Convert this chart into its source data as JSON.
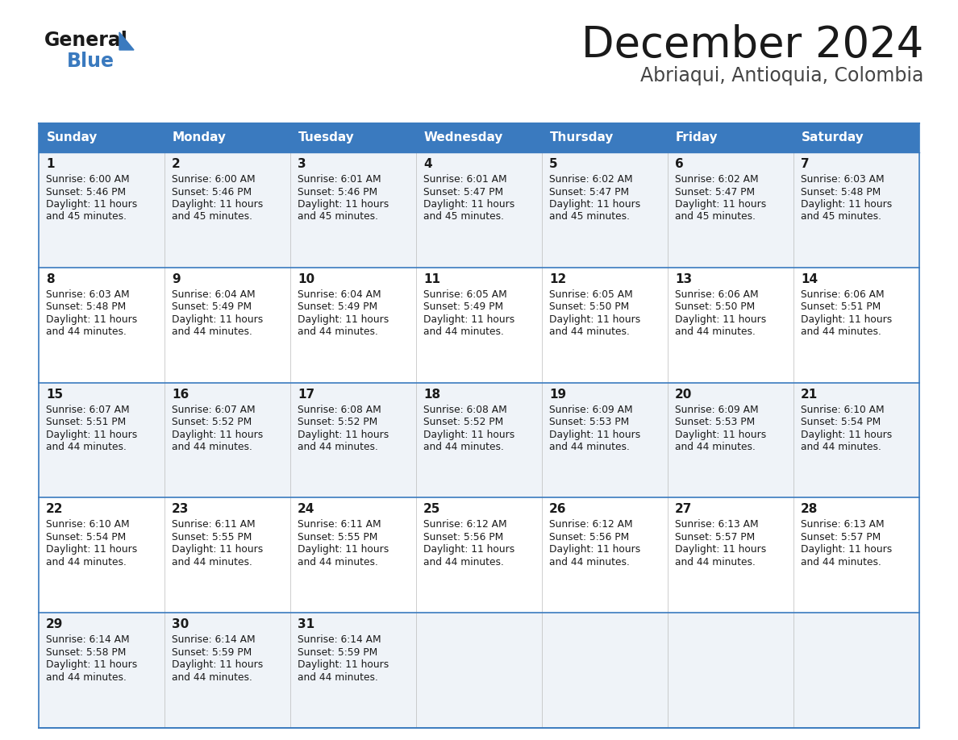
{
  "title": "December 2024",
  "subtitle": "Abriaqui, Antioquia, Colombia",
  "header_color": "#3a7abf",
  "header_text_color": "#ffffff",
  "day_names": [
    "Sunday",
    "Monday",
    "Tuesday",
    "Wednesday",
    "Thursday",
    "Friday",
    "Saturday"
  ],
  "bg_color": "#ffffff",
  "cell_bg_even": "#eff3f8",
  "cell_bg_odd": "#ffffff",
  "row_line_color": "#3a7abf",
  "text_color": "#1a1a1a",
  "logo_general_color": "#1a1a1a",
  "logo_blue_color": "#3a7abf",
  "logo_triangle_color": "#3a7abf",
  "days": [
    {
      "day": 1,
      "col": 0,
      "row": 0,
      "sunrise": "6:00 AM",
      "sunset": "5:46 PM",
      "daylight_mins": "45"
    },
    {
      "day": 2,
      "col": 1,
      "row": 0,
      "sunrise": "6:00 AM",
      "sunset": "5:46 PM",
      "daylight_mins": "45"
    },
    {
      "day": 3,
      "col": 2,
      "row": 0,
      "sunrise": "6:01 AM",
      "sunset": "5:46 PM",
      "daylight_mins": "45"
    },
    {
      "day": 4,
      "col": 3,
      "row": 0,
      "sunrise": "6:01 AM",
      "sunset": "5:47 PM",
      "daylight_mins": "45"
    },
    {
      "day": 5,
      "col": 4,
      "row": 0,
      "sunrise": "6:02 AM",
      "sunset": "5:47 PM",
      "daylight_mins": "45"
    },
    {
      "day": 6,
      "col": 5,
      "row": 0,
      "sunrise": "6:02 AM",
      "sunset": "5:47 PM",
      "daylight_mins": "45"
    },
    {
      "day": 7,
      "col": 6,
      "row": 0,
      "sunrise": "6:03 AM",
      "sunset": "5:48 PM",
      "daylight_mins": "45"
    },
    {
      "day": 8,
      "col": 0,
      "row": 1,
      "sunrise": "6:03 AM",
      "sunset": "5:48 PM",
      "daylight_mins": "44"
    },
    {
      "day": 9,
      "col": 1,
      "row": 1,
      "sunrise": "6:04 AM",
      "sunset": "5:49 PM",
      "daylight_mins": "44"
    },
    {
      "day": 10,
      "col": 2,
      "row": 1,
      "sunrise": "6:04 AM",
      "sunset": "5:49 PM",
      "daylight_mins": "44"
    },
    {
      "day": 11,
      "col": 3,
      "row": 1,
      "sunrise": "6:05 AM",
      "sunset": "5:49 PM",
      "daylight_mins": "44"
    },
    {
      "day": 12,
      "col": 4,
      "row": 1,
      "sunrise": "6:05 AM",
      "sunset": "5:50 PM",
      "daylight_mins": "44"
    },
    {
      "day": 13,
      "col": 5,
      "row": 1,
      "sunrise": "6:06 AM",
      "sunset": "5:50 PM",
      "daylight_mins": "44"
    },
    {
      "day": 14,
      "col": 6,
      "row": 1,
      "sunrise": "6:06 AM",
      "sunset": "5:51 PM",
      "daylight_mins": "44"
    },
    {
      "day": 15,
      "col": 0,
      "row": 2,
      "sunrise": "6:07 AM",
      "sunset": "5:51 PM",
      "daylight_mins": "44"
    },
    {
      "day": 16,
      "col": 1,
      "row": 2,
      "sunrise": "6:07 AM",
      "sunset": "5:52 PM",
      "daylight_mins": "44"
    },
    {
      "day": 17,
      "col": 2,
      "row": 2,
      "sunrise": "6:08 AM",
      "sunset": "5:52 PM",
      "daylight_mins": "44"
    },
    {
      "day": 18,
      "col": 3,
      "row": 2,
      "sunrise": "6:08 AM",
      "sunset": "5:52 PM",
      "daylight_mins": "44"
    },
    {
      "day": 19,
      "col": 4,
      "row": 2,
      "sunrise": "6:09 AM",
      "sunset": "5:53 PM",
      "daylight_mins": "44"
    },
    {
      "day": 20,
      "col": 5,
      "row": 2,
      "sunrise": "6:09 AM",
      "sunset": "5:53 PM",
      "daylight_mins": "44"
    },
    {
      "day": 21,
      "col": 6,
      "row": 2,
      "sunrise": "6:10 AM",
      "sunset": "5:54 PM",
      "daylight_mins": "44"
    },
    {
      "day": 22,
      "col": 0,
      "row": 3,
      "sunrise": "6:10 AM",
      "sunset": "5:54 PM",
      "daylight_mins": "44"
    },
    {
      "day": 23,
      "col": 1,
      "row": 3,
      "sunrise": "6:11 AM",
      "sunset": "5:55 PM",
      "daylight_mins": "44"
    },
    {
      "day": 24,
      "col": 2,
      "row": 3,
      "sunrise": "6:11 AM",
      "sunset": "5:55 PM",
      "daylight_mins": "44"
    },
    {
      "day": 25,
      "col": 3,
      "row": 3,
      "sunrise": "6:12 AM",
      "sunset": "5:56 PM",
      "daylight_mins": "44"
    },
    {
      "day": 26,
      "col": 4,
      "row": 3,
      "sunrise": "6:12 AM",
      "sunset": "5:56 PM",
      "daylight_mins": "44"
    },
    {
      "day": 27,
      "col": 5,
      "row": 3,
      "sunrise": "6:13 AM",
      "sunset": "5:57 PM",
      "daylight_mins": "44"
    },
    {
      "day": 28,
      "col": 6,
      "row": 3,
      "sunrise": "6:13 AM",
      "sunset": "5:57 PM",
      "daylight_mins": "44"
    },
    {
      "day": 29,
      "col": 0,
      "row": 4,
      "sunrise": "6:14 AM",
      "sunset": "5:58 PM",
      "daylight_mins": "44"
    },
    {
      "day": 30,
      "col": 1,
      "row": 4,
      "sunrise": "6:14 AM",
      "sunset": "5:59 PM",
      "daylight_mins": "44"
    },
    {
      "day": 31,
      "col": 2,
      "row": 4,
      "sunrise": "6:14 AM",
      "sunset": "5:59 PM",
      "daylight_mins": "44"
    }
  ]
}
